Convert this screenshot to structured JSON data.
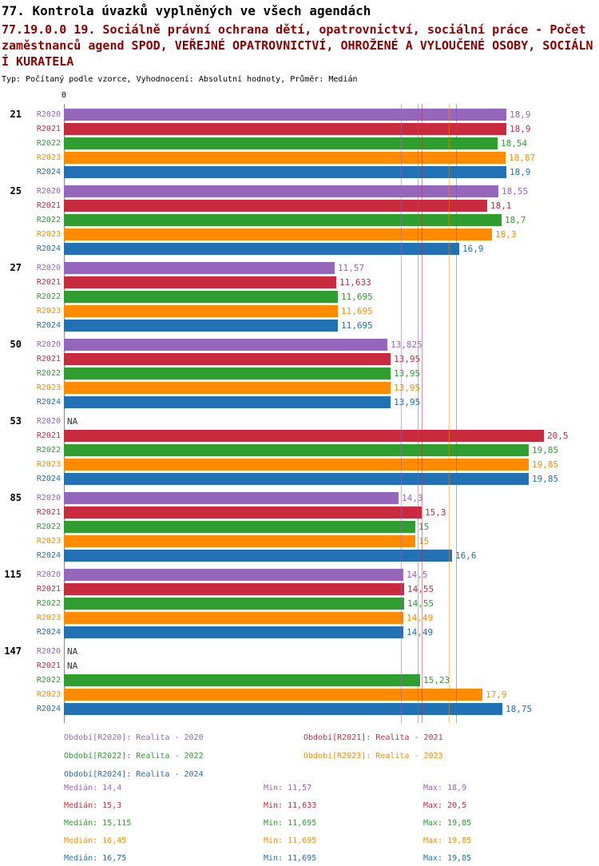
{
  "header": {
    "title": "77. Kontrola úvazků vyplněných ve všech agendách",
    "subtitle": "77.19.0.0 19. Sociálně právní ochrana dětí, opatrovnictví, sociální práce - Počet zaměstnanců agend SPOD, VEŘEJNÉ OPATROVNICTVÍ, OHROŽENÉ A VYLOUČENÉ OSOBY, SOCIÁLNÍ KURATELA",
    "meta": "Typ: Počítaný podle vzorce, Vyhodnocení: Absolutní hodnoty, Průměr: Medián"
  },
  "chart_data": {
    "type": "bar",
    "orientation": "horizontal",
    "x_origin_label": "0",
    "xlim": [
      0,
      20.5
    ],
    "grid": false,
    "na_label_color": "#333333",
    "axis_color": "#888888",
    "series": [
      {
        "id": "R2020",
        "color": "#9467bd",
        "legend": "Období[R2020]: Realita - 2020",
        "median": 14.4,
        "stats": {
          "median": "Medián: 14,4",
          "min": "Min: 11,57",
          "max": "Max: 18,9"
        }
      },
      {
        "id": "R2021",
        "color": "#c92a3d",
        "legend": "Období[R2021]: Realita - 2021",
        "median": 15.3,
        "stats": {
          "median": "Medián: 15,3",
          "min": "Min: 11,633",
          "max": "Max: 20,5"
        }
      },
      {
        "id": "R2022",
        "color": "#2f9e2f",
        "legend": "Období[R2022]: Realita - 2022",
        "median": 15.115,
        "stats": {
          "median": "Medián: 15,115",
          "min": "Min: 11,695",
          "max": "Max: 19,85"
        }
      },
      {
        "id": "R2023",
        "color": "#ff8c00",
        "legend": "Období[R2023]: Realita - 2023",
        "median": 16.45,
        "stats": {
          "median": "Medián: 16,45",
          "min": "Min: 11,695",
          "max": "Max: 19,85"
        }
      },
      {
        "id": "R2024",
        "color": "#2171b5",
        "legend": "Období[R2024]: Realita - 2024",
        "median": 16.75,
        "stats": {
          "median": "Medián: 16,75",
          "min": "Min: 11,695",
          "max": "Max: 19,85"
        }
      }
    ],
    "groups": [
      {
        "label": "21",
        "values": [
          18.9,
          18.9,
          18.54,
          18.87,
          18.9
        ],
        "displays": [
          "18,9",
          "18,9",
          "18,54",
          "18,87",
          "18,9"
        ]
      },
      {
        "label": "25",
        "values": [
          18.55,
          18.1,
          18.7,
          18.3,
          16.9
        ],
        "displays": [
          "18,55",
          "18,1",
          "18,7",
          "18,3",
          "16,9"
        ]
      },
      {
        "label": "27",
        "values": [
          11.57,
          11.633,
          11.695,
          11.695,
          11.695
        ],
        "displays": [
          "11,57",
          "11,633",
          "11,695",
          "11,695",
          "11,695"
        ]
      },
      {
        "label": "50",
        "values": [
          13.825,
          13.95,
          13.95,
          13.95,
          13.95
        ],
        "displays": [
          "13,825",
          "13,95",
          "13,95",
          "13,95",
          "13,95"
        ]
      },
      {
        "label": "53",
        "values": [
          null,
          20.5,
          19.85,
          19.85,
          19.85
        ],
        "displays": [
          "NA",
          "20,5",
          "19,85",
          "19,85",
          "19,85"
        ]
      },
      {
        "label": "85",
        "values": [
          14.3,
          15.3,
          15,
          15,
          16.6
        ],
        "displays": [
          "14,3",
          "15,3",
          "15",
          "15",
          "16,6"
        ]
      },
      {
        "label": "115",
        "values": [
          14.5,
          14.55,
          14.55,
          14.49,
          14.49
        ],
        "displays": [
          "14,5",
          "14,55",
          "14,55",
          "14,49",
          "14,49"
        ]
      },
      {
        "label": "147",
        "values": [
          null,
          null,
          15.23,
          17.9,
          18.75
        ],
        "displays": [
          "NA",
          "NA",
          "15,23",
          "17,9",
          "18,75"
        ]
      }
    ]
  }
}
